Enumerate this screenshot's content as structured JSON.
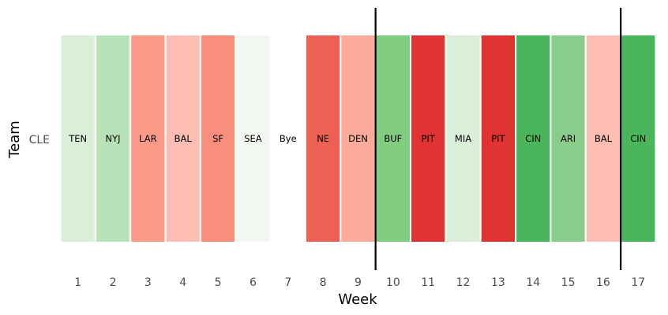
{
  "chart_data": {
    "type": "heatmap",
    "title": "",
    "xlabel": "Week",
    "ylabel": "Team",
    "row_label": "CLE",
    "weeks": [
      "1",
      "2",
      "3",
      "4",
      "5",
      "6",
      "7",
      "8",
      "9",
      "10",
      "11",
      "12",
      "13",
      "14",
      "15",
      "16",
      "17"
    ],
    "cells": [
      {
        "week": 1,
        "opponent": "TEN",
        "color": "#d9efd8"
      },
      {
        "week": 2,
        "opponent": "NYJ",
        "color": "#b8e2b8"
      },
      {
        "week": 3,
        "opponent": "LAR",
        "color": "#fb9a88"
      },
      {
        "week": 4,
        "opponent": "BAL",
        "color": "#fdbdb2"
      },
      {
        "week": 5,
        "opponent": "SF",
        "color": "#f88e7c"
      },
      {
        "week": 6,
        "opponent": "SEA",
        "color": "#f0f8ef"
      },
      {
        "week": 7,
        "opponent": "Bye",
        "color": "#ffffff"
      },
      {
        "week": 8,
        "opponent": "NE",
        "color": "#ec6153"
      },
      {
        "week": 9,
        "opponent": "DEN",
        "color": "#fdab9b"
      },
      {
        "week": 10,
        "opponent": "BUF",
        "color": "#80cc80"
      },
      {
        "week": 11,
        "opponent": "PIT",
        "color": "#e03333"
      },
      {
        "week": 12,
        "opponent": "MIA",
        "color": "#d9efd8"
      },
      {
        "week": 13,
        "opponent": "PIT",
        "color": "#e03333"
      },
      {
        "week": 14,
        "opponent": "CIN",
        "color": "#4bb55b"
      },
      {
        "week": 15,
        "opponent": "ARI",
        "color": "#8acd8a"
      },
      {
        "week": 16,
        "opponent": "BAL",
        "color": "#fdbdb2"
      },
      {
        "week": 17,
        "opponent": "CIN",
        "color": "#4bb55b"
      }
    ],
    "vlines_after_weeks": [
      9,
      16
    ],
    "grid": false,
    "legend": "none"
  }
}
